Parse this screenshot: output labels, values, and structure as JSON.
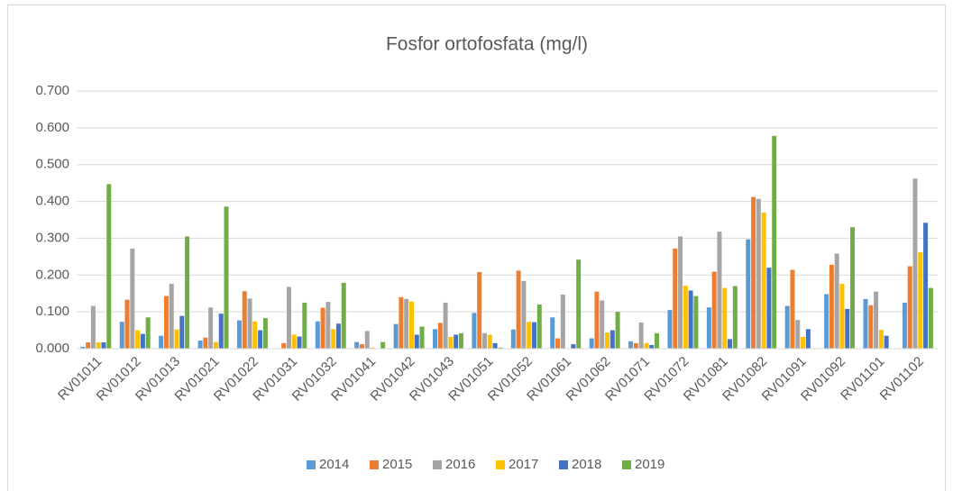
{
  "chart_data": {
    "type": "bar",
    "title": "Fosfor ortofosfata (mg/l)",
    "categories": [
      "RV01011",
      "RV01012",
      "RV01013",
      "RV01021",
      "RV01022",
      "RV01031",
      "RV01032",
      "RV01041",
      "RV01042",
      "RV01043",
      "RV01051",
      "RV01052",
      "RV01061",
      "RV01062",
      "RV01071",
      "RV01072",
      "RV01081",
      "RV01082",
      "RV01091",
      "RV01092",
      "RV01101",
      "RV01102"
    ],
    "series": [
      {
        "name": "2014",
        "color": "#5b9bd5",
        "values": [
          0.005,
          0.073,
          0.035,
          0.022,
          0.077,
          null,
          0.074,
          0.018,
          0.067,
          0.053,
          0.097,
          0.052,
          0.085,
          0.028,
          0.02,
          0.105,
          0.112,
          0.297,
          0.116,
          0.148,
          0.135,
          0.125
        ]
      },
      {
        "name": "2015",
        "color": "#ed7d31",
        "values": [
          0.017,
          0.133,
          0.143,
          0.03,
          0.156,
          0.015,
          0.111,
          0.012,
          0.14,
          0.07,
          0.208,
          0.212,
          0.028,
          0.155,
          0.015,
          0.272,
          0.209,
          0.412,
          0.214,
          0.228,
          0.118,
          0.224
        ]
      },
      {
        "name": "2016",
        "color": "#a5a5a5",
        "values": [
          0.116,
          0.272,
          0.176,
          0.112,
          0.136,
          0.168,
          0.127,
          0.048,
          0.135,
          0.125,
          0.042,
          0.184,
          0.147,
          0.131,
          0.071,
          0.305,
          0.318,
          0.407,
          0.078,
          0.258,
          0.155,
          0.462
        ]
      },
      {
        "name": "2017",
        "color": "#ffc000",
        "values": [
          0.017,
          0.05,
          0.052,
          0.018,
          0.074,
          0.038,
          0.053,
          0.003,
          0.128,
          0.032,
          0.038,
          0.073,
          null,
          0.044,
          0.015,
          0.171,
          0.165,
          0.37,
          0.032,
          0.176,
          0.051,
          0.262
        ]
      },
      {
        "name": "2018",
        "color": "#4472c4",
        "values": [
          0.017,
          0.04,
          0.089,
          0.095,
          0.05,
          0.033,
          0.068,
          null,
          0.038,
          0.038,
          0.015,
          0.072,
          0.012,
          0.05,
          0.01,
          0.158,
          0.026,
          0.22,
          0.053,
          0.108,
          0.035,
          0.342
        ]
      },
      {
        "name": "2019",
        "color": "#70ad47",
        "values": [
          0.447,
          0.085,
          0.305,
          0.386,
          0.083,
          0.125,
          0.179,
          0.018,
          0.06,
          0.042,
          0.003,
          0.12,
          0.242,
          0.1,
          0.042,
          0.143,
          0.17,
          0.578,
          null,
          0.33,
          null,
          0.165
        ]
      }
    ],
    "ylim": [
      0,
      0.7
    ],
    "yticks": [
      {
        "value": 0,
        "label": "0.000"
      },
      {
        "value": 0.1,
        "label": "0.100"
      },
      {
        "value": 0.2,
        "label": "0.200"
      },
      {
        "value": 0.3,
        "label": "0.300"
      },
      {
        "value": 0.4,
        "label": "0.400"
      },
      {
        "value": 0.5,
        "label": "0.500"
      },
      {
        "value": 0.6,
        "label": "0.600"
      },
      {
        "value": 0.7,
        "label": "0.700"
      }
    ],
    "grid": true,
    "legend": "bottom"
  }
}
